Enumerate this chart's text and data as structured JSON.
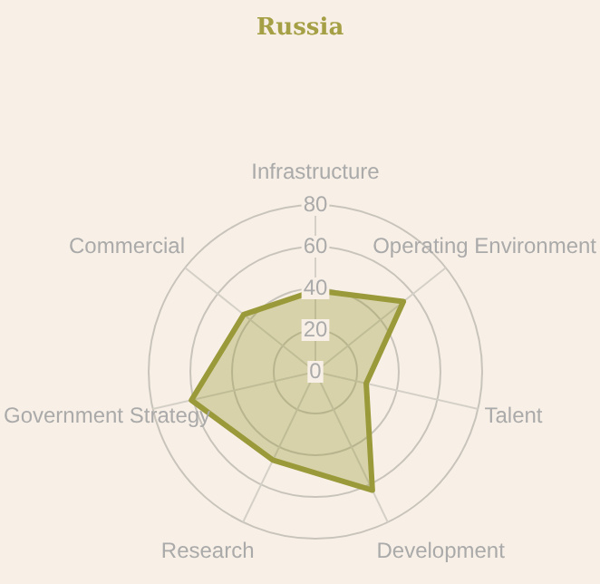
{
  "chart_data": {
    "type": "radar",
    "title": "Russia",
    "categories": [
      "Infrastructure",
      "Operating Environment",
      "Talent",
      "Development",
      "Research",
      "Government Strategy",
      "Commercial"
    ],
    "series": [
      {
        "color": "#9a9a3a",
        "values": [
          39,
          54,
          25,
          63,
          47,
          61,
          44
        ]
      }
    ],
    "ylim": [
      0,
      80
    ],
    "yticks": [
      0,
      20,
      40,
      60,
      80
    ],
    "grid": true,
    "legend": false,
    "marker": "none"
  }
}
